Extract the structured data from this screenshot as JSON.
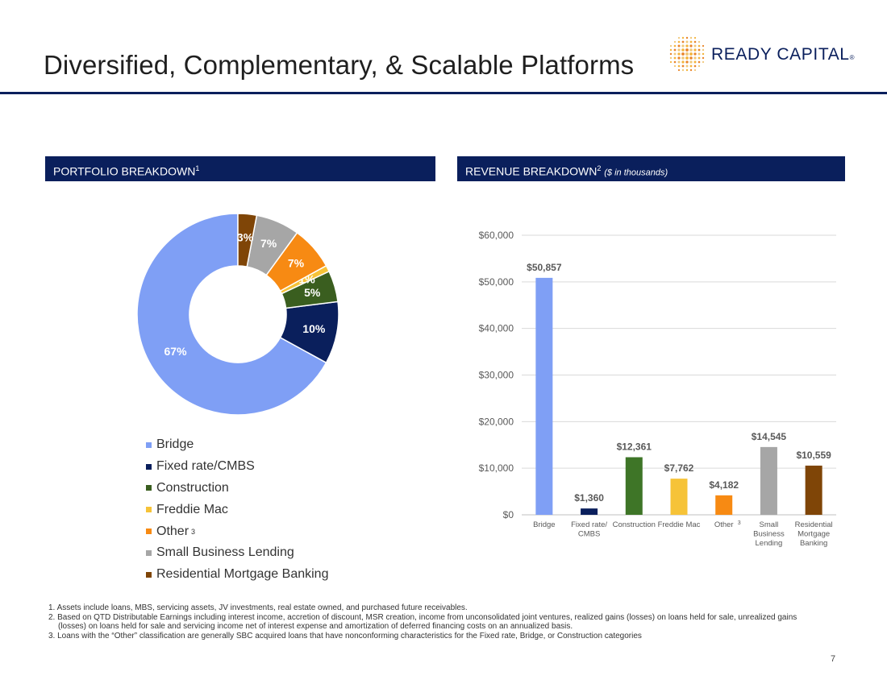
{
  "slide": {
    "title": "Diversified, Complementary, & Scalable Platforms",
    "page_number": "7"
  },
  "logo": {
    "text": "READY CAPITAL",
    "reg": "®",
    "colors": [
      "#f4b43c",
      "#e9852c",
      "#f0c87a"
    ]
  },
  "panels": {
    "left": {
      "title": "PORTFOLIO BREAKDOWN",
      "sup": "1"
    },
    "right": {
      "title": "REVENUE BREAKDOWN",
      "sup": "2",
      "note": "($ in thousands)"
    }
  },
  "chart_data": [
    {
      "type": "pie",
      "donut": true,
      "title": "",
      "categories": [
        "Bridge",
        "Fixed rate/CMBS",
        "Construction",
        "Freddie Mac",
        "Other",
        "Small Business Lending",
        "Residential Mortgage Banking"
      ],
      "values": [
        67,
        10,
        5,
        1,
        7,
        7,
        3
      ],
      "labels": [
        "67%",
        "10%",
        "5%",
        "1%",
        "7%",
        "7%",
        "3%"
      ],
      "colors": [
        "#7f9ff5",
        "#0a1f5c",
        "#3a5e1f",
        "#f6c338",
        "#f78a13",
        "#a6a6a6",
        "#7f4507"
      ],
      "legend": {
        "placement": "bottom",
        "items": [
          {
            "label": "Bridge",
            "sup": ""
          },
          {
            "label": "Fixed rate/CMBS",
            "sup": ""
          },
          {
            "label": "Construction",
            "sup": ""
          },
          {
            "label": "Freddie Mac",
            "sup": ""
          },
          {
            "label": "Other",
            "sup": "3"
          },
          {
            "label": "Small Business Lending",
            "sup": ""
          },
          {
            "label": "Residential Mortgage Banking",
            "sup": ""
          }
        ]
      }
    },
    {
      "type": "bar",
      "title": "",
      "xlabel": "",
      "ylabel": "",
      "ylim": [
        0,
        60000
      ],
      "yticks": [
        0,
        10000,
        20000,
        30000,
        40000,
        50000,
        60000
      ],
      "ytick_labels": [
        "$0",
        "$10,000",
        "$20,000",
        "$30,000",
        "$40,000",
        "$50,000",
        "$60,000"
      ],
      "grid": true,
      "categories": [
        "Bridge",
        "Fixed rate/ CMBS",
        "Construction",
        "Freddie Mac",
        "Other",
        "Small Business Lending",
        "Residential Mortgage Banking"
      ],
      "category_lines": [
        [
          "Bridge"
        ],
        [
          "Fixed rate/",
          "CMBS"
        ],
        [
          "Construction"
        ],
        [
          "Freddie Mac"
        ],
        [
          "Other"
        ],
        [
          "Small",
          "Business",
          "Lending"
        ],
        [
          "Residential",
          "Mortgage",
          "Banking"
        ]
      ],
      "category_sups": [
        "",
        "",
        "",
        "",
        "3",
        "",
        ""
      ],
      "values": [
        50857,
        1360,
        12361,
        7762,
        4182,
        14545,
        10559
      ],
      "data_labels": [
        "$50,857",
        "$1,360",
        "$12,361",
        "$7,762",
        "$4,182",
        "$14,545",
        "$10,559"
      ],
      "colors": [
        "#7f9ff5",
        "#0a1f5c",
        "#3e7527",
        "#f6c338",
        "#f78a13",
        "#a6a6a6",
        "#7f4507"
      ]
    }
  ],
  "footnotes": [
    "1. Assets include loans, MBS, servicing assets, JV investments, real estate owned, and purchased future receivables.",
    "2. Based on QTD Distributable Earnings including interest income, accretion of discount, MSR creation, income from unconsolidated joint ventures, realized gains (losses) on loans held for sale, unrealized gains (losses) on loans held for sale and servicing income net of interest expense and amortization of deferred financing costs on an annualized basis.",
    "3. Loans with the “Other” classification are generally SBC acquired loans that have nonconforming characteristics for the Fixed rate, Bridge, or Construction categories"
  ]
}
